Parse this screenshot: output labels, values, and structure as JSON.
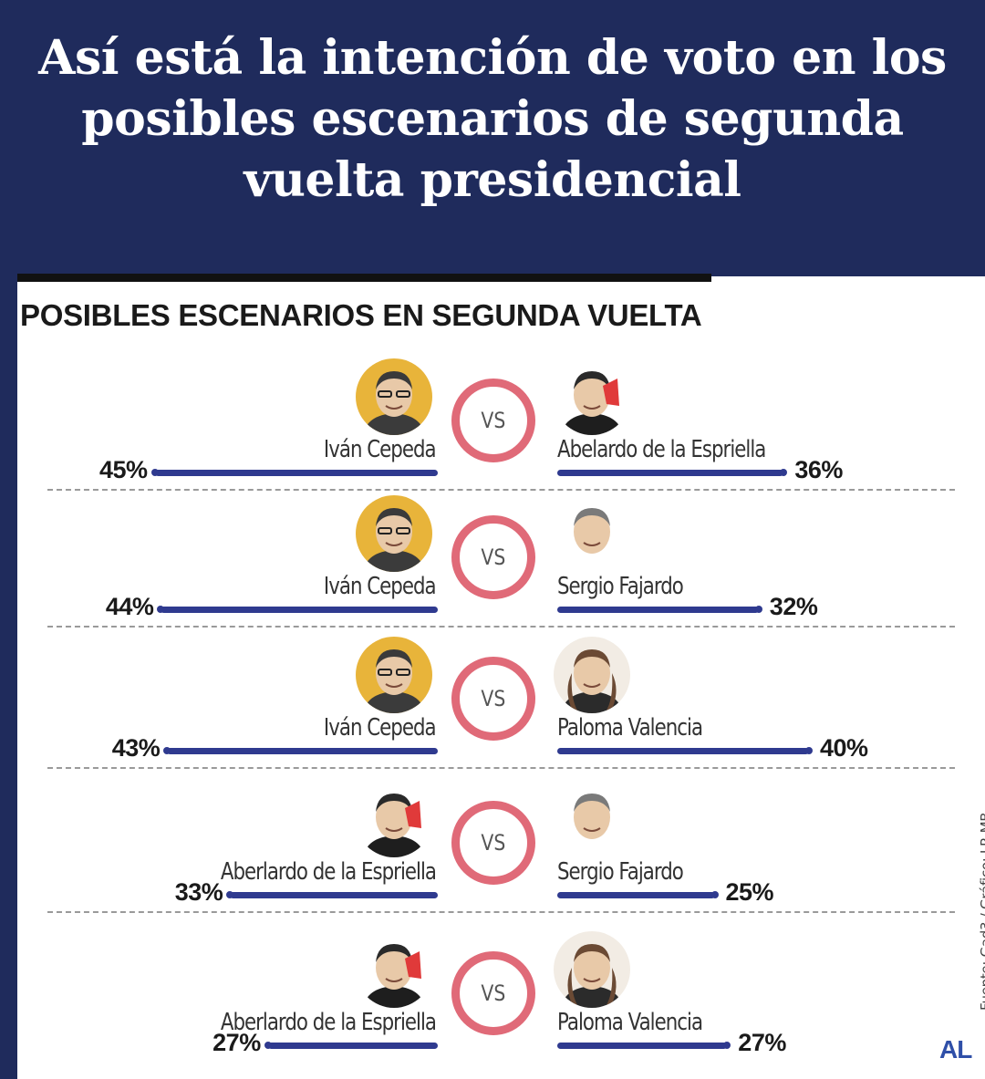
{
  "headline": "Así está la intención de voto en los posibles escenarios de segunda vuelta presidencial",
  "source": "Fuente: Gad3 / Gráfico: LR-MB",
  "logo": "AL",
  "colors": {
    "header_bg": "#1f2b5c",
    "bar": "#2f3a8f",
    "vs_ring": "#e06a78",
    "logo": "#2f4fa8"
  },
  "chart_data": {
    "type": "bar",
    "title": "POSIBLES ESCENARIOS EN SEGUNDA VUELTA",
    "vs_label": "VS",
    "unit": "%",
    "matchups": [
      {
        "left": {
          "name": "Iván Cepeda",
          "value": 45,
          "label": "45%",
          "photo": "cepeda-photo"
        },
        "right": {
          "name": "Abelardo de la Espriella",
          "value": 36,
          "label": "36%",
          "photo": "espriella-photo"
        }
      },
      {
        "left": {
          "name": "Iván Cepeda",
          "value": 44,
          "label": "44%",
          "photo": "cepeda-photo"
        },
        "right": {
          "name": "Sergio Fajardo",
          "value": 32,
          "label": "32%",
          "photo": "fajardo-photo"
        }
      },
      {
        "left": {
          "name": "Iván Cepeda",
          "value": 43,
          "label": "43%",
          "photo": "cepeda-photo"
        },
        "right": {
          "name": "Paloma Valencia",
          "value": 40,
          "label": "40%",
          "photo": "valencia-photo"
        }
      },
      {
        "left": {
          "name": "Aberlardo de la Espriella",
          "value": 33,
          "label": "33%",
          "photo": "espriella-photo"
        },
        "right": {
          "name": "Sergio Fajardo",
          "value": 25,
          "label": "25%",
          "photo": "fajardo-photo"
        }
      },
      {
        "left": {
          "name": "Aberlardo de la Espriella",
          "value": 27,
          "label": "27%",
          "photo": "espriella-photo"
        },
        "right": {
          "name": "Paloma Valencia",
          "value": 27,
          "label": "27%",
          "photo": "valencia-photo"
        }
      }
    ]
  }
}
